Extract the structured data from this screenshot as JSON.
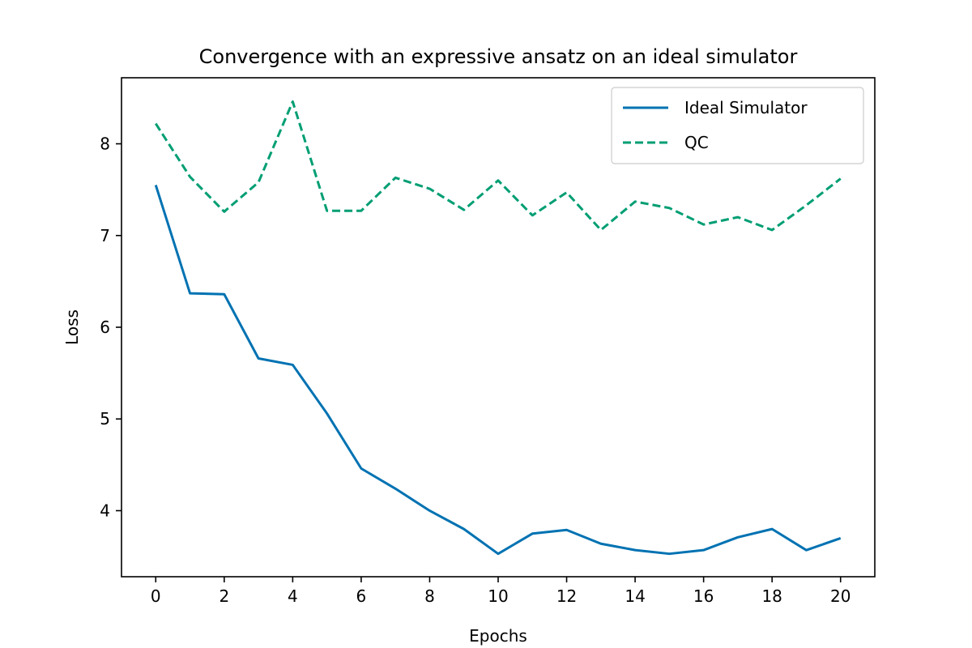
{
  "chart_data": {
    "type": "line",
    "title": "Convergence with an expressive ansatz on an ideal simulator",
    "xlabel": "Epochs",
    "ylabel": "Loss",
    "x": [
      0,
      1,
      2,
      3,
      4,
      5,
      6,
      7,
      8,
      9,
      10,
      11,
      12,
      13,
      14,
      15,
      16,
      17,
      18,
      19,
      20
    ],
    "xlim": [
      -1,
      21
    ],
    "ylim": [
      3.28,
      8.72
    ],
    "xticks": [
      0,
      2,
      4,
      6,
      8,
      10,
      12,
      14,
      16,
      18,
      20
    ],
    "yticks": [
      4,
      5,
      6,
      7,
      8
    ],
    "grid": false,
    "legend_position": "top-right",
    "series": [
      {
        "name": "Ideal Simulator",
        "color": "#0072B2",
        "style": "solid",
        "values": [
          7.55,
          6.37,
          6.36,
          5.66,
          5.59,
          5.06,
          4.46,
          4.24,
          4.0,
          3.8,
          3.53,
          3.75,
          3.79,
          3.64,
          3.57,
          3.53,
          3.57,
          3.71,
          3.8,
          3.57,
          3.7
        ]
      },
      {
        "name": "QC",
        "color": "#009E73",
        "style": "dashed",
        "values": [
          8.22,
          7.64,
          7.26,
          7.58,
          8.46,
          7.27,
          7.27,
          7.63,
          7.51,
          7.28,
          7.6,
          7.22,
          7.47,
          7.06,
          7.37,
          7.3,
          7.12,
          7.2,
          7.06,
          7.33,
          7.62
        ]
      }
    ]
  }
}
